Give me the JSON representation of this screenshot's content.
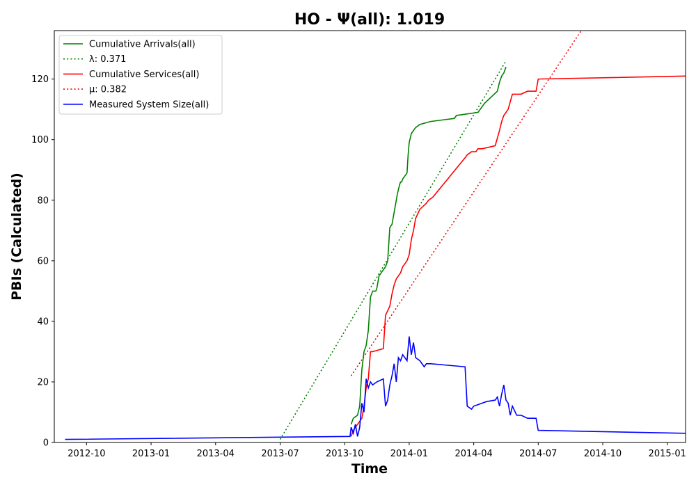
{
  "chart_data": {
    "type": "line",
    "title": "HO -  Ψ(all): 1.019",
    "xlabel": "Time",
    "ylabel": "PBIs (Calculated)",
    "x_unit": "months since 2012-08",
    "xlim": [
      0.5,
      29.85
    ],
    "ylim": [
      0,
      136
    ],
    "x_ticks": [
      {
        "value": 2,
        "label": "2012-10"
      },
      {
        "value": 5,
        "label": "2013-01"
      },
      {
        "value": 8,
        "label": "2013-04"
      },
      {
        "value": 11,
        "label": "2013-07"
      },
      {
        "value": 14,
        "label": "2013-10"
      },
      {
        "value": 17,
        "label": "2014-01"
      },
      {
        "value": 20,
        "label": "2014-04"
      },
      {
        "value": 23,
        "label": "2014-07"
      },
      {
        "value": 26,
        "label": "2014-10"
      },
      {
        "value": 29,
        "label": "2015-01"
      }
    ],
    "y_ticks": [
      0,
      20,
      40,
      60,
      80,
      100,
      120
    ],
    "grid": false,
    "legend_position": "top-left",
    "series": [
      {
        "name": "Cumulative Arrivals(all)",
        "style": "solid",
        "color": "#008000",
        "x": [
          14.3,
          14.4,
          14.6,
          14.7,
          14.8,
          14.9,
          15.0,
          15.1,
          15.2,
          15.3,
          15.45,
          15.5,
          15.6,
          15.7,
          15.9,
          16.0,
          16.1,
          16.2,
          16.3,
          16.4,
          16.45,
          16.55,
          16.6,
          16.65,
          16.7,
          16.9,
          16.95,
          17.0,
          17.1,
          17.2,
          17.3,
          17.5,
          18.0,
          19.1,
          19.2,
          20.2,
          20.3,
          20.5,
          21.1,
          21.2,
          21.3,
          21.4,
          21.5
        ],
        "y": [
          6,
          8,
          9,
          12,
          24,
          30,
          32,
          37,
          48,
          50,
          50,
          51,
          55,
          56,
          58,
          60,
          71,
          72,
          76,
          80,
          82,
          85,
          86,
          86,
          87,
          89,
          95,
          99,
          102,
          103,
          104,
          105,
          106,
          107,
          108,
          109,
          110,
          112,
          116,
          119,
          121,
          122,
          124
        ]
      },
      {
        "name": "λ: 0.371",
        "style": "dotted",
        "color": "#008000",
        "x": [
          11.0,
          21.5
        ],
        "y": [
          1,
          126
        ]
      },
      {
        "name": "Cumulative Services(all)",
        "style": "solid",
        "color": "#ff0000",
        "x": [
          14.3,
          14.4,
          14.8,
          14.9,
          15.0,
          15.1,
          15.2,
          15.3,
          15.8,
          15.9,
          16.1,
          16.2,
          16.3,
          16.4,
          16.5,
          16.6,
          16.7,
          16.9,
          17.0,
          17.1,
          17.2,
          17.3,
          17.5,
          17.8,
          17.9,
          18.1,
          19.6,
          19.7,
          19.9,
          20.1,
          20.2,
          20.3,
          20.4,
          21.0,
          21.2,
          21.3,
          21.4,
          21.6,
          21.8,
          22.2,
          22.5,
          22.9,
          23.0,
          29.95
        ],
        "y": [
          2,
          4,
          8,
          12,
          18,
          21,
          30,
          30,
          31,
          42,
          45,
          49,
          52,
          54,
          55,
          56,
          58,
          60,
          62,
          67,
          70,
          74,
          77,
          79,
          80,
          81,
          94,
          95,
          96,
          96,
          97,
          97,
          97,
          98,
          103,
          106,
          108,
          110,
          115,
          115,
          116,
          116,
          120,
          121
        ]
      },
      {
        "name": "μ: 0.382",
        "style": "dotted",
        "color": "#ff0000",
        "x": [
          14.3,
          25.0
        ],
        "y": [
          22,
          136
        ]
      },
      {
        "name": "Measured System Size(all)",
        "style": "solid",
        "color": "#0000ff",
        "x": [
          1.0,
          14.25,
          14.3,
          14.4,
          14.5,
          14.6,
          14.7,
          14.8,
          14.9,
          15.0,
          15.1,
          15.2,
          15.3,
          15.5,
          15.8,
          15.9,
          16.0,
          16.1,
          16.2,
          16.3,
          16.4,
          16.5,
          16.6,
          16.7,
          16.8,
          16.9,
          17.0,
          17.1,
          17.2,
          17.3,
          17.5,
          17.7,
          17.8,
          18.0,
          19.6,
          19.7,
          19.9,
          20.0,
          20.2,
          20.4,
          20.6,
          21.0,
          21.1,
          21.2,
          21.3,
          21.4,
          21.5,
          21.6,
          21.7,
          21.8,
          22.0,
          22.2,
          22.5,
          22.9,
          23.0,
          29.95
        ],
        "y": [
          1,
          2,
          5,
          3,
          6,
          2,
          5,
          13,
          10,
          21,
          18,
          20,
          19,
          20,
          21,
          12,
          14,
          19,
          22,
          26,
          20,
          28,
          27,
          29,
          28,
          27,
          35,
          29,
          33,
          28,
          27,
          25,
          26,
          26,
          25,
          12,
          11,
          12,
          12.5,
          13,
          13.5,
          14,
          15,
          12,
          16,
          19,
          14,
          13,
          9,
          12,
          9,
          9,
          8,
          8,
          4,
          3
        ]
      }
    ]
  }
}
